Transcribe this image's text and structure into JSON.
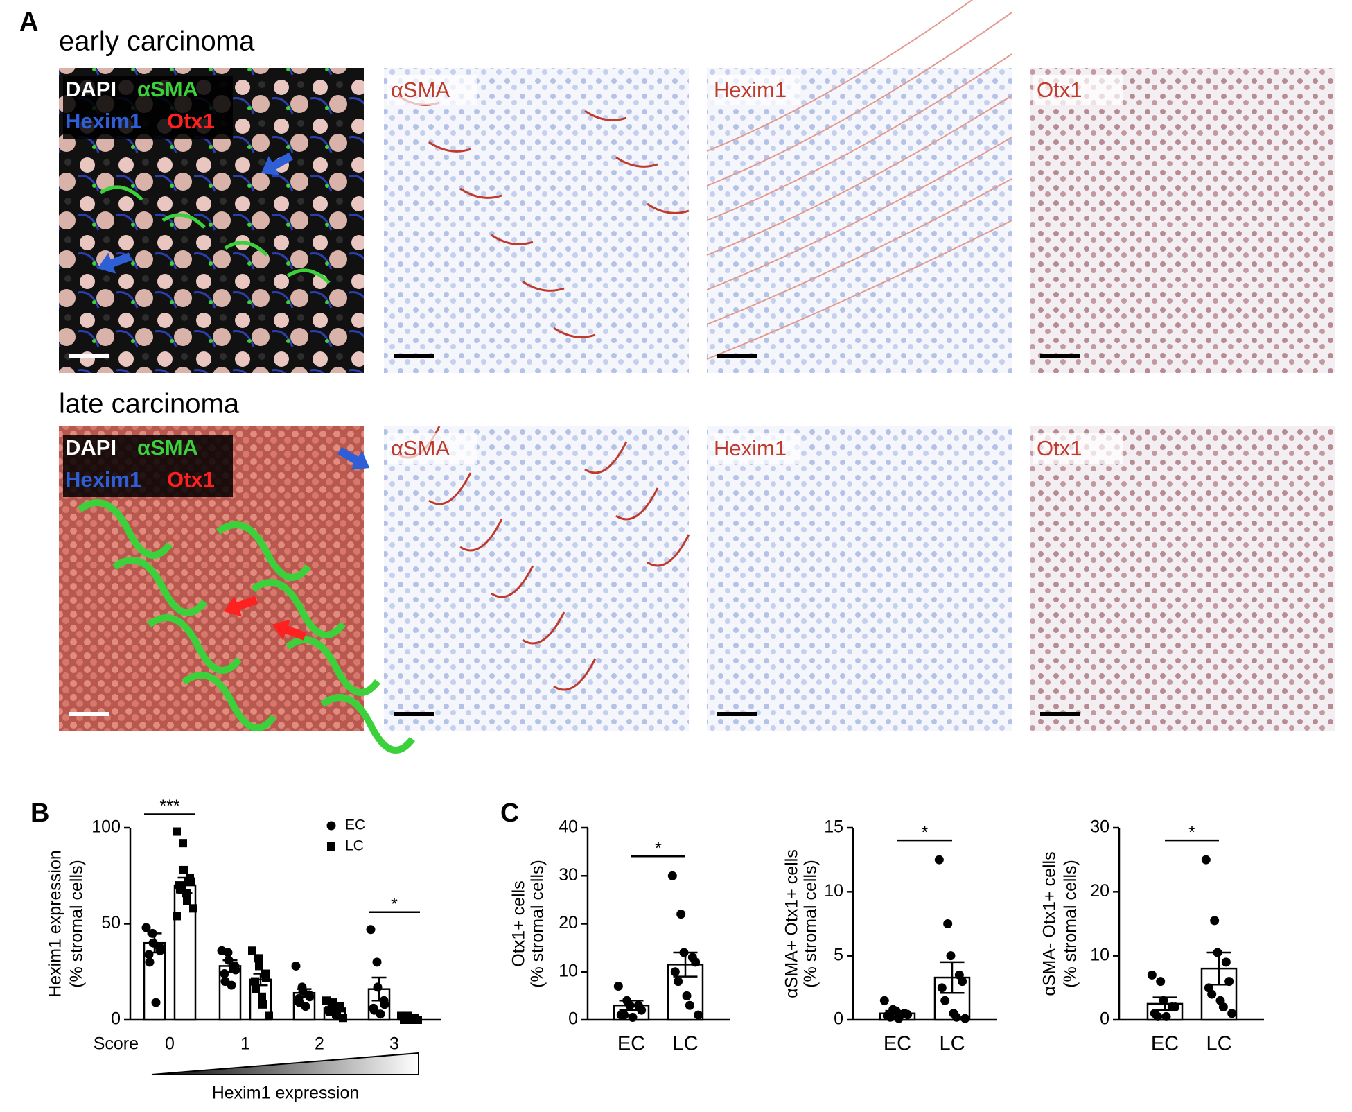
{
  "panel_a": {
    "label": "A",
    "rows": [
      {
        "title": "early carcinoma"
      },
      {
        "title": "late carcinoma"
      }
    ],
    "merge_labels": [
      "DAPI",
      "αSMA",
      "Hexim1",
      "Otx1"
    ],
    "stain_labels": [
      "αSMA",
      "Hexim1",
      "Otx1"
    ]
  },
  "chart_data": [
    {
      "type": "bar",
      "panel": "B",
      "x_title": "Score",
      "xlabel": "Hexim1 expression",
      "ylabel": [
        "Hexim1 expression",
        "(% stromal cells)"
      ],
      "categories": [
        "0",
        "1",
        "2",
        "3"
      ],
      "ylim": [
        0,
        100
      ],
      "yticks": [
        0,
        50,
        100
      ],
      "series": [
        {
          "name": "EC",
          "marker": "circle",
          "color": "#000000",
          "values": [
            40,
            28,
            14,
            16
          ],
          "errors": [
            5,
            3,
            2,
            6
          ],
          "points": [
            [
              48,
              45,
              40,
              38,
              36,
              34,
              30,
              9
            ],
            [
              36,
              35,
              31,
              28,
              26,
              24,
              20,
              18
            ],
            [
              28,
              17,
              15,
              13,
              12,
              11,
              9,
              7
            ],
            [
              47,
              30,
              17,
              10,
              8,
              6,
              5,
              3
            ]
          ]
        },
        {
          "name": "LC",
          "marker": "square",
          "color": "#000000",
          "values": [
            70,
            21,
            6,
            1
          ],
          "errors": [
            4,
            3,
            1,
            0.5
          ],
          "points": [
            [
              98,
              92,
              78,
              74,
              72,
              70,
              68,
              66,
              62,
              58,
              54
            ],
            [
              36,
              32,
              28,
              24,
              22,
              20,
              16,
              12,
              8,
              2
            ],
            [
              10,
              9,
              8,
              7,
              6,
              5,
              4,
              3,
              2,
              1
            ],
            [
              2,
              2,
              1,
              1,
              1,
              0,
              0,
              0,
              0,
              0
            ]
          ]
        }
      ],
      "significance": [
        "***",
        null,
        null,
        "*"
      ]
    },
    {
      "type": "bar",
      "panel": "C",
      "ylabel": [
        "Otx1+ cells",
        "(% stromal cells)"
      ],
      "categories": [
        "EC",
        "LC"
      ],
      "ylim": [
        0,
        40
      ],
      "yticks": [
        0,
        10,
        20,
        30,
        40
      ],
      "color": "#000000",
      "values": [
        3,
        11.5
      ],
      "errors": [
        1,
        2.5
      ],
      "points": [
        [
          7,
          4,
          3,
          3,
          2,
          1,
          1,
          0.5
        ],
        [
          30,
          22,
          14,
          13,
          12,
          10,
          8,
          5,
          3,
          1
        ]
      ],
      "significance": "*"
    },
    {
      "type": "bar",
      "ylabel": [
        "αSMA+ Otx1+ cells",
        "(% stromal cells)"
      ],
      "categories": [
        "EC",
        "LC"
      ],
      "ylim": [
        0,
        15
      ],
      "yticks": [
        0,
        5,
        10,
        15
      ],
      "color": "#000000",
      "values": [
        0.5,
        3.3
      ],
      "errors": [
        0.2,
        1.2
      ],
      "points": [
        [
          1.5,
          0.8,
          0.7,
          0.5,
          0.4,
          0.3,
          0.2,
          0.1
        ],
        [
          12.5,
          7.5,
          5,
          3.5,
          3,
          2.5,
          1.5,
          0.5,
          0.2,
          0.1
        ]
      ],
      "significance": "*"
    },
    {
      "type": "bar",
      "ylabel": [
        "αSMA- Otx1+ cells",
        "(% stromal cells)"
      ],
      "categories": [
        "EC",
        "LC"
      ],
      "ylim": [
        0,
        30
      ],
      "yticks": [
        0,
        10,
        20,
        30
      ],
      "color": "#000000",
      "values": [
        2.5,
        8
      ],
      "errors": [
        1,
        2.5
      ],
      "points": [
        [
          7,
          6,
          3,
          2,
          2,
          1,
          0.5,
          0.5
        ],
        [
          25,
          15.5,
          10.5,
          9,
          6,
          5,
          4,
          3,
          2,
          1
        ]
      ],
      "significance": "*"
    }
  ]
}
